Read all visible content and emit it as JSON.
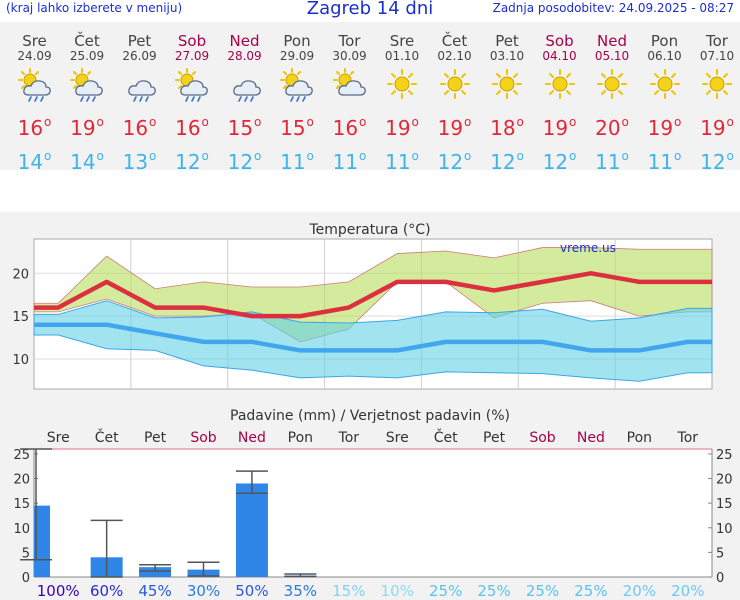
{
  "header": {
    "left": "(kraj lahko izberete v meniju)",
    "title": "Zagreb 14 dni",
    "right": "Zadnja posodobitev: 24.09.2025 - 08:27"
  },
  "colors": {
    "weekday": "#444444",
    "weekend": "#a8004a",
    "tmax": "#e0283a",
    "tmin": "#3fb4e8",
    "bar": "#2f86e6"
  },
  "days": [
    {
      "name": "Sre",
      "date": "24.09",
      "weekend": false,
      "icon": "sun-cloud-rain-icon",
      "tmax": "16",
      "tmin": "14"
    },
    {
      "name": "Čet",
      "date": "25.09",
      "weekend": false,
      "icon": "sun-cloud-rain-icon",
      "tmax": "19",
      "tmin": "14"
    },
    {
      "name": "Pet",
      "date": "26.09",
      "weekend": false,
      "icon": "cloud-rain-icon",
      "tmax": "16",
      "tmin": "13"
    },
    {
      "name": "Sob",
      "date": "27.09",
      "weekend": true,
      "icon": "sun-cloud-rain-icon",
      "tmax": "16",
      "tmin": "12"
    },
    {
      "name": "Ned",
      "date": "28.09",
      "weekend": true,
      "icon": "cloud-rain-icon",
      "tmax": "15",
      "tmin": "12"
    },
    {
      "name": "Pon",
      "date": "29.09",
      "weekend": false,
      "icon": "sun-cloud-rain-icon",
      "tmax": "15",
      "tmin": "11"
    },
    {
      "name": "Tor",
      "date": "30.09",
      "weekend": false,
      "icon": "sun-cloud-icon",
      "tmax": "16",
      "tmin": "11"
    },
    {
      "name": "Sre",
      "date": "01.10",
      "weekend": false,
      "icon": "sun-icon",
      "tmax": "19",
      "tmin": "11"
    },
    {
      "name": "Čet",
      "date": "02.10",
      "weekend": false,
      "icon": "sun-icon",
      "tmax": "19",
      "tmin": "12"
    },
    {
      "name": "Pet",
      "date": "03.10",
      "weekend": false,
      "icon": "sun-icon",
      "tmax": "18",
      "tmin": "12"
    },
    {
      "name": "Sob",
      "date": "04.10",
      "weekend": true,
      "icon": "sun-icon",
      "tmax": "19",
      "tmin": "12"
    },
    {
      "name": "Ned",
      "date": "05.10",
      "weekend": true,
      "icon": "sun-icon",
      "tmax": "20",
      "tmin": "11"
    },
    {
      "name": "Pon",
      "date": "06.10",
      "weekend": false,
      "icon": "sun-icon",
      "tmax": "19",
      "tmin": "11"
    },
    {
      "name": "Tor",
      "date": "07.10",
      "weekend": false,
      "icon": "sun-icon",
      "tmax": "19",
      "tmin": "12"
    }
  ],
  "chart_data": [
    {
      "type": "line",
      "title": "Temperatura (°C)",
      "watermark": "vreme.us",
      "categories": [
        "Sre",
        "Čet",
        "Pet",
        "Sob",
        "Ned",
        "Pon",
        "Tor",
        "Sre",
        "Čet",
        "Pet",
        "Sob",
        "Ned",
        "Pon",
        "Tor"
      ],
      "ylim": [
        6.5,
        24
      ],
      "yticks": [
        10,
        15,
        20
      ],
      "grid": true,
      "series": [
        {
          "values": [
            16,
            19,
            16,
            16,
            15,
            15,
            16,
            19,
            19,
            18,
            19,
            20,
            19,
            19
          ]
        },
        {
          "values": [
            14,
            14,
            13,
            12,
            12,
            11,
            11,
            11,
            12,
            12,
            12,
            11,
            11,
            12
          ]
        }
      ],
      "bands": [
        {
          "upper": [
            16.5,
            22,
            18.2,
            19,
            18.4,
            18.4,
            19,
            22.3,
            22.6,
            21.8,
            23,
            23,
            22.8,
            22.8
          ],
          "lower": [
            15.5,
            17,
            15,
            15,
            15.3,
            12,
            13.5,
            19,
            19,
            14.8,
            16.5,
            16.8,
            15,
            15.5
          ]
        },
        {
          "upper": [
            15.2,
            16.8,
            14.8,
            14.9,
            15.5,
            14.3,
            14.2,
            14.5,
            15.5,
            15.4,
            15.8,
            14.4,
            14.8,
            15.9
          ],
          "lower": [
            12.8,
            11.2,
            11,
            9.2,
            8.7,
            7.8,
            8,
            7.8,
            8.5,
            8.4,
            8.3,
            7.8,
            7.4,
            8.4
          ]
        }
      ]
    },
    {
      "type": "bar",
      "title": "Padavine (mm) / Verjetnost padavin (%)",
      "categories": [
        "Sre",
        "Čet",
        "Pet",
        "Sob",
        "Ned",
        "Pon",
        "Tor",
        "Sre",
        "Čet",
        "Pet",
        "Sob",
        "Ned",
        "Pon",
        "Tor"
      ],
      "ylim": [
        0,
        26
      ],
      "yticks": [
        0,
        5,
        10,
        15,
        20,
        25
      ],
      "values": [
        14.5,
        4,
        2,
        1.5,
        19,
        0.3,
        0,
        0,
        0,
        0,
        0,
        0,
        0,
        0
      ],
      "error_high": [
        26,
        11.5,
        2.5,
        3,
        21.5,
        0.6,
        0,
        0,
        0,
        0,
        0,
        0,
        0,
        0
      ],
      "error_low": [
        3.5,
        0,
        1.2,
        0.2,
        17,
        0.1,
        0,
        0,
        0,
        0,
        0,
        0,
        0,
        0
      ],
      "probability": [
        "100%",
        "60%",
        "45%",
        "30%",
        "50%",
        "35%",
        "15%",
        "10%",
        "25%",
        "25%",
        "25%",
        "25%",
        "20%",
        "20%"
      ],
      "probability_colors": [
        "#3a00b8",
        "#2a2ad0",
        "#2a5ad8",
        "#2a7ae0",
        "#2a5ad8",
        "#2a7ae0",
        "#7fd4f4",
        "#8adcf6",
        "#58c4f0",
        "#58c4f0",
        "#58c4f0",
        "#58c4f0",
        "#6acbf2",
        "#6acbf2"
      ]
    }
  ]
}
